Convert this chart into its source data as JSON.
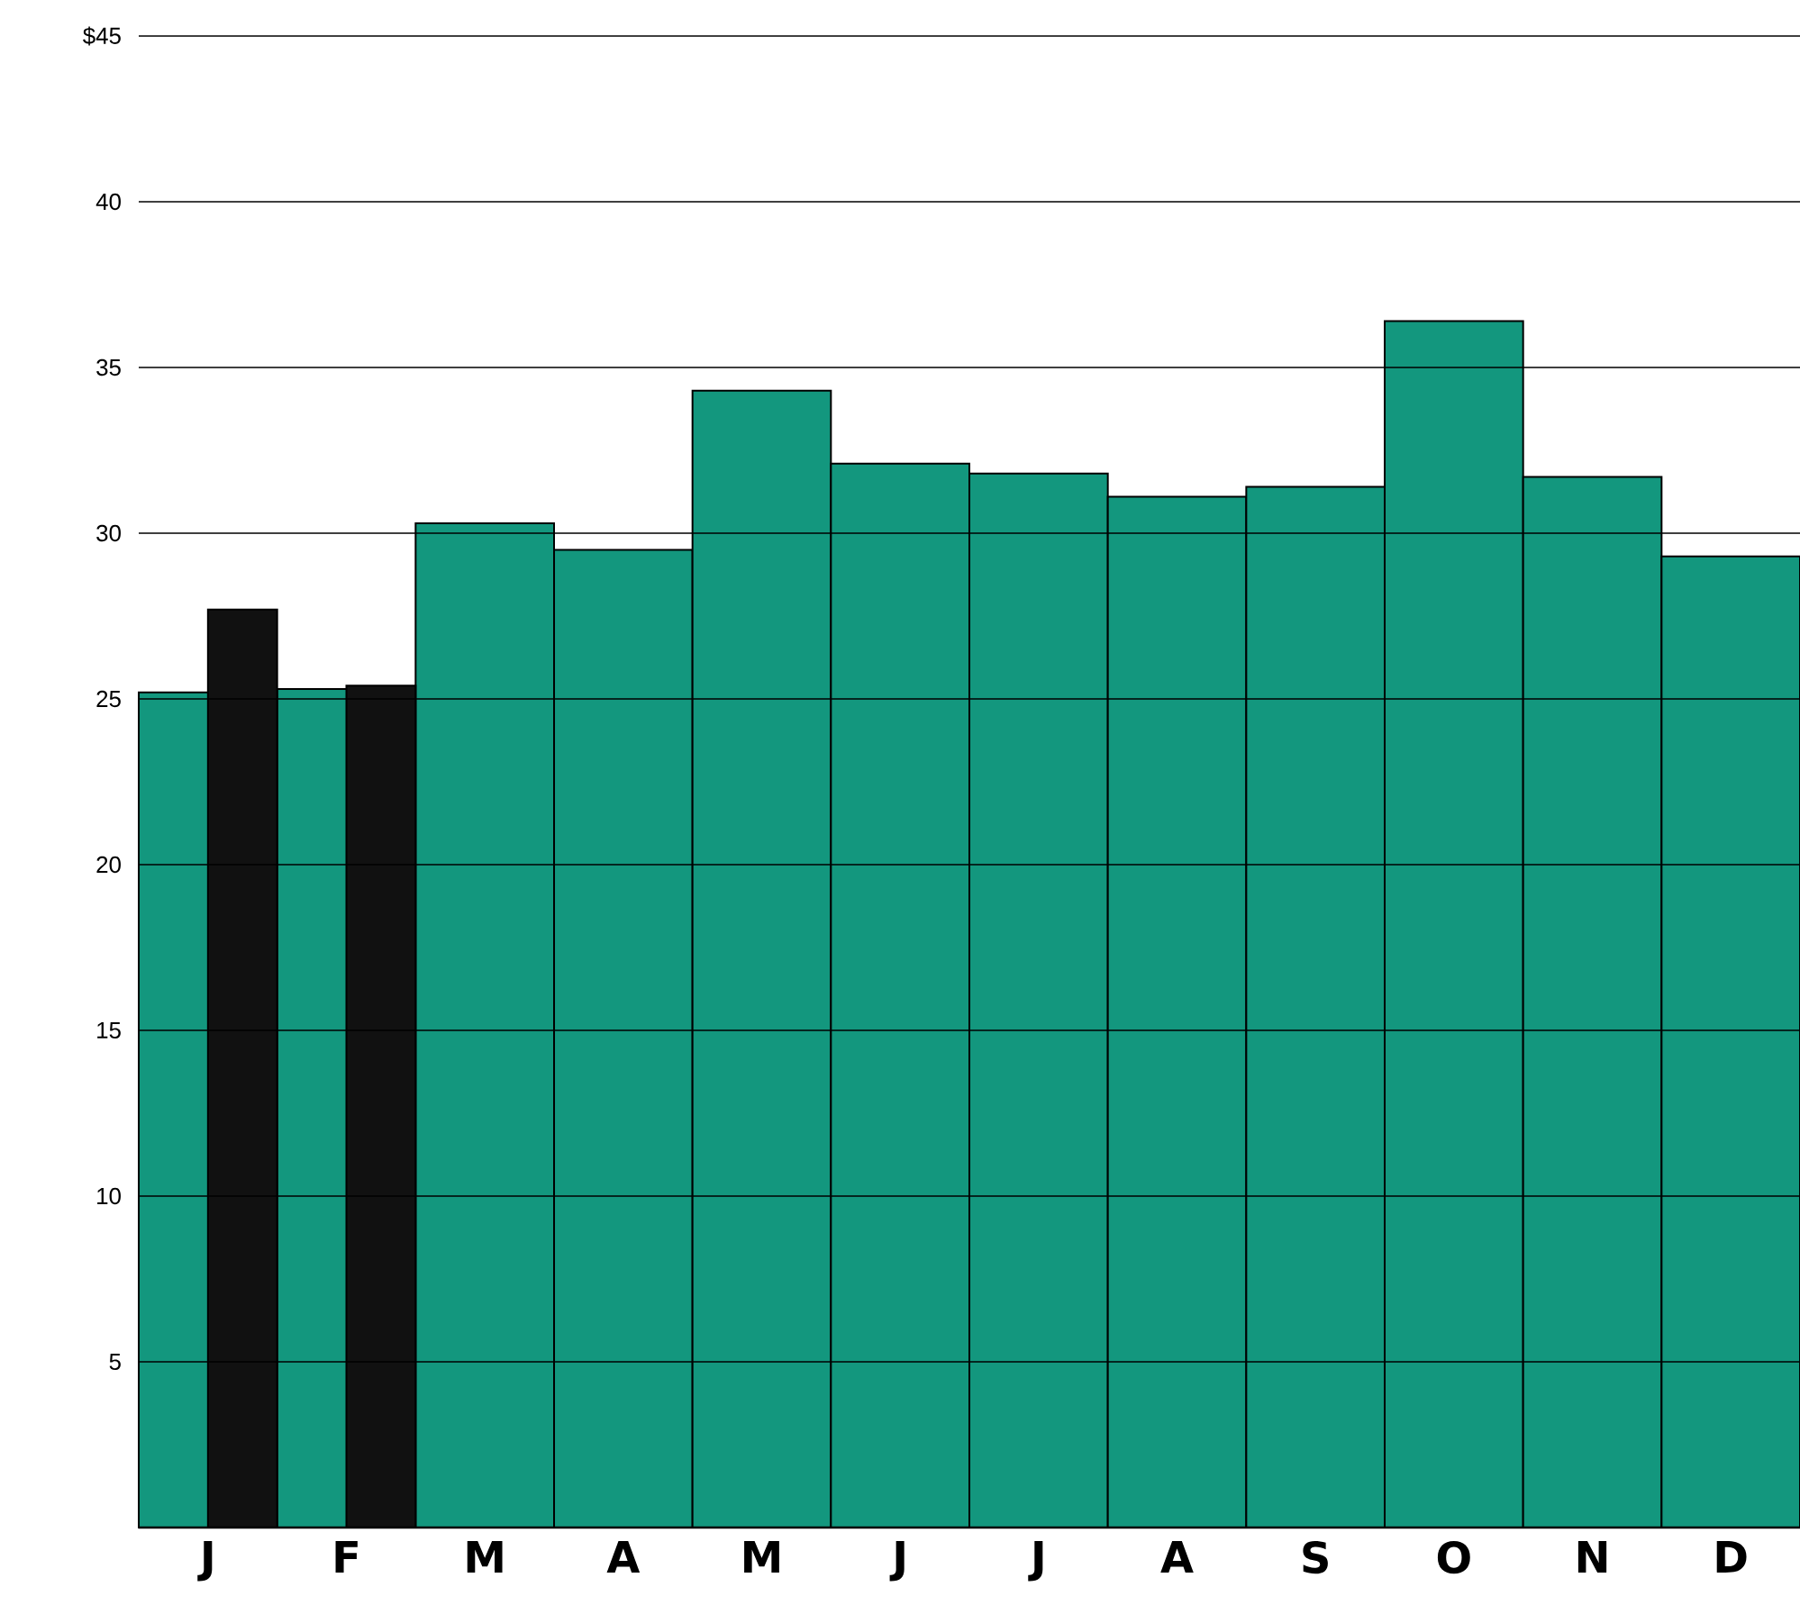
{
  "chart_data": {
    "type": "bar",
    "categories": [
      "J",
      "F",
      "M",
      "A",
      "M",
      "J",
      "J",
      "A",
      "S",
      "O",
      "N",
      "D"
    ],
    "series": [
      {
        "color": "#13977e",
        "values": [
          25.2,
          25.3,
          30.3,
          29.5,
          34.3,
          32.1,
          31.8,
          31.1,
          31.4,
          36.4,
          31.7,
          29.3
        ]
      },
      {
        "color": "#111111",
        "values": [
          27.7,
          25.4,
          null,
          null,
          null,
          null,
          null,
          null,
          null,
          null,
          null,
          null
        ]
      }
    ],
    "ylim": [
      0,
      45
    ],
    "yticks": [
      5,
      10,
      15,
      20,
      25,
      30,
      35,
      40,
      {
        "value": 45,
        "label": "$45"
      }
    ],
    "grid": "y"
  }
}
